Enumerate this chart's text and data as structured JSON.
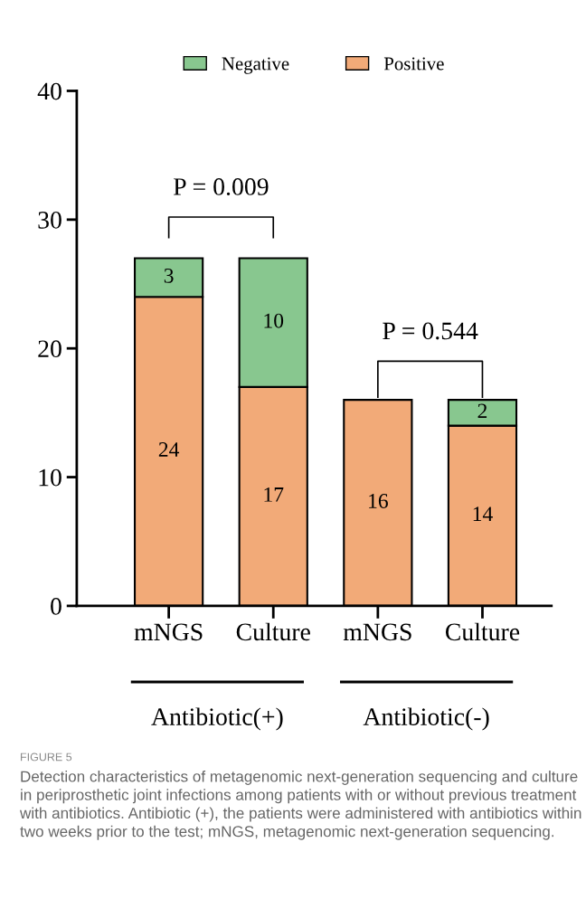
{
  "chart_data": {
    "type": "bar",
    "stacked": true,
    "categories": [
      "mNGS",
      "Culture",
      "mNGS",
      "Culture"
    ],
    "series": [
      {
        "name": "Positive",
        "color": "#f2aa78",
        "values": [
          24,
          17,
          16,
          14
        ]
      },
      {
        "name": "Negative",
        "color": "#88c78f",
        "values": [
          3,
          10,
          null,
          2
        ]
      }
    ],
    "ylim": [
      0,
      40
    ],
    "yticks": [
      0,
      10,
      20,
      30,
      40
    ],
    "data_labels": true,
    "legend": "top",
    "grid": false,
    "annotations": [
      "P = 0.009",
      "P = 0.544",
      "Antibiotic(+)",
      "Antibiotic(-)",
      "FIGURE 5",
      "Detection characteristics of metagenomic next-generation sequencing and culture in periprosthetic joint infections among patients with or without previous treatment with antibiotics. Antibiotic (+), the patients were administered with antibiotics within two weeks prior to the test; mNGS, metagenomic next-generation sequencing."
    ]
  }
}
